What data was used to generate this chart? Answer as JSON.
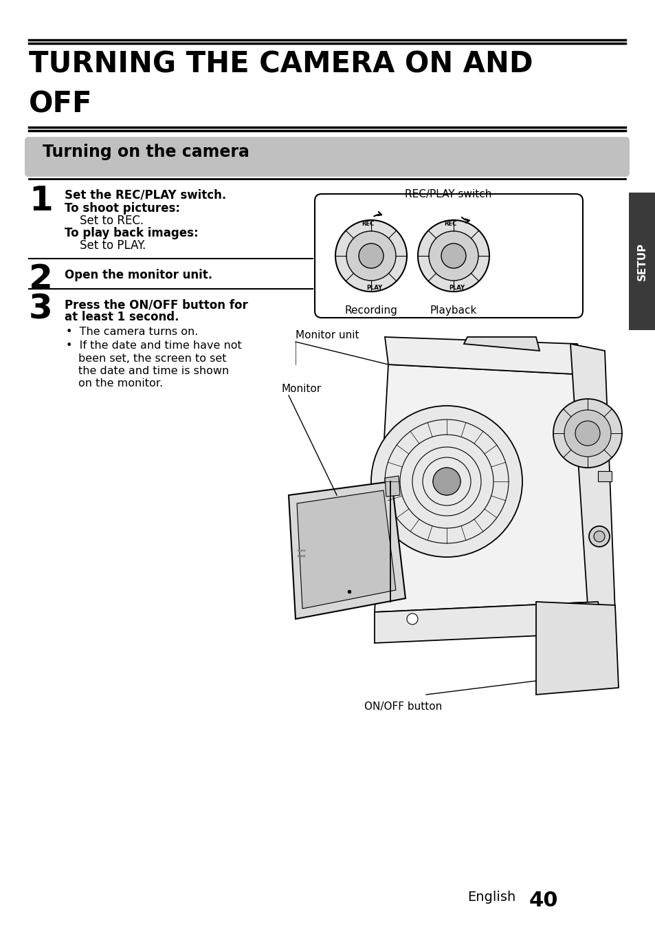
{
  "title_line1": "TURNING THE CAMERA ON AND",
  "title_line2": "OFF",
  "section_header": "Turning on the camera",
  "step1_num": "1",
  "step1_bold": "Set the REC/PLAY switch.",
  "step1_sub1_bold": "To shoot pictures:",
  "step1_sub1": "Set to REC.",
  "step1_sub2_bold": "To play back images:",
  "step1_sub2": "Set to PLAY.",
  "step2_num": "2",
  "step2_bold": "Open the monitor unit.",
  "step3_num": "3",
  "step3_bold1": "Press the ON/OFF button for",
  "step3_bold2": "at least 1 second.",
  "step3_bullet1": "The camera turns on.",
  "step3_bullet2_line1": "If the date and time have not",
  "step3_bullet2_line2": "been set, the screen to set",
  "step3_bullet2_line3": "the date and time is shown",
  "step3_bullet2_line4": "on the monitor.",
  "label_recplay": "REC/PLAY switch",
  "label_recording": "Recording",
  "label_playback": "Playback",
  "label_monitor_unit": "Monitor unit",
  "label_monitor": "Monitor",
  "label_onoff": "ON/OFF button",
  "setup_text": "SETUP",
  "footer_text": "English",
  "page_num": "40",
  "bg_color": "#ffffff",
  "title_color": "#000000",
  "section_bg": "#c0c0c0",
  "section_text_color": "#000000",
  "sidebar_color": "#3a3a3a"
}
